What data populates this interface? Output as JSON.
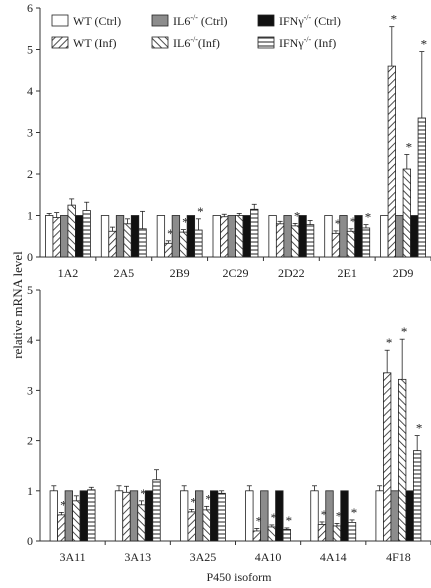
{
  "figure": {
    "ylabel": "relative mRNA level",
    "xlabel": "P450 isoform"
  },
  "legend": {
    "entries": [
      {
        "key": "wt_ctrl",
        "prefix": "WT",
        "sup": "",
        "suffix": " (Ctrl)",
        "fill": "white"
      },
      {
        "key": "il6_ctrl",
        "prefix": "IL6",
        "sup": "-/-",
        "suffix": " (Ctrl)",
        "fill": "gray"
      },
      {
        "key": "ifng_ctrl",
        "prefix": "IFNγ",
        "sup": "-/-",
        "suffix": " (Ctrl)",
        "fill": "black"
      },
      {
        "key": "wt_inf",
        "prefix": "WT",
        "sup": "",
        "suffix": " (Inf)",
        "fill": "hatch-fwd"
      },
      {
        "key": "il6_inf",
        "prefix": "IL6",
        "sup": "-/-",
        "suffix": "(Inf)",
        "fill": "hatch-back"
      },
      {
        "key": "ifng_inf",
        "prefix": "IFNγ",
        "sup": "-/-",
        "suffix": " (Inf)",
        "fill": "hatch-horiz"
      }
    ]
  },
  "colors": {
    "gray": "#8c8c8c",
    "black": "#111111",
    "axis": "#333333",
    "hatch": "#222222"
  },
  "chart_data": [
    {
      "type": "bar",
      "panel": "top",
      "ylim": [
        0,
        6
      ],
      "yticks": [
        "0",
        "1",
        "2",
        "3",
        "4",
        "5",
        "6"
      ],
      "categories": [
        "1A2",
        "2A5",
        "2B9",
        "2C29",
        "2D22",
        "2E1",
        "2D9"
      ],
      "series_order": [
        "WT (Ctrl)",
        "WT (Inf)",
        "IL6-/- (Ctrl)",
        "IL6-/- (Inf)",
        "IFNγ-/- (Ctrl)",
        "IFNγ-/- (Inf)"
      ],
      "series": [
        {
          "name": "WT (Ctrl)",
          "values": [
            1.0,
            1.0,
            1.0,
            1.0,
            1.0,
            1.0,
            1.0
          ],
          "err": [
            0.05,
            0.0,
            0.0,
            0.0,
            0.0,
            0.0,
            0.0
          ],
          "stars": [
            false,
            false,
            false,
            false,
            false,
            false,
            false
          ]
        },
        {
          "name": "WT (Inf)",
          "values": [
            0.95,
            0.62,
            0.33,
            0.97,
            0.8,
            0.57,
            4.6
          ],
          "err": [
            0.12,
            0.1,
            0.06,
            0.06,
            0.06,
            0.06,
            0.95
          ],
          "stars": [
            false,
            false,
            true,
            false,
            false,
            true,
            true
          ]
        },
        {
          "name": "IL6-/- (Ctrl)",
          "values": [
            1.0,
            1.0,
            1.0,
            1.0,
            1.0,
            1.0,
            1.0
          ],
          "err": [
            0.0,
            0.0,
            0.0,
            0.0,
            0.0,
            0.0,
            0.0
          ],
          "stars": [
            false,
            false,
            false,
            false,
            false,
            false,
            false
          ]
        },
        {
          "name": "IL6-/- (Inf)",
          "values": [
            1.25,
            0.8,
            0.6,
            1.0,
            0.75,
            0.62,
            2.12
          ],
          "err": [
            0.15,
            0.12,
            0.06,
            0.05,
            0.06,
            0.06,
            0.35
          ],
          "stars": [
            false,
            false,
            true,
            false,
            true,
            true,
            true
          ]
        },
        {
          "name": "IFNγ-/- (Ctrl)",
          "values": [
            1.0,
            1.0,
            1.0,
            1.0,
            1.0,
            1.0,
            1.0
          ],
          "err": [
            0.0,
            0.0,
            0.0,
            0.0,
            0.0,
            0.0,
            0.0
          ],
          "stars": [
            false,
            false,
            false,
            false,
            false,
            false,
            false
          ]
        },
        {
          "name": "IFNγ-/- (Inf)",
          "values": [
            1.12,
            0.68,
            0.65,
            1.15,
            0.78,
            0.7,
            3.35
          ],
          "err": [
            0.2,
            0.42,
            0.27,
            0.12,
            0.1,
            0.08,
            1.6
          ],
          "stars": [
            false,
            false,
            true,
            false,
            false,
            true,
            true
          ]
        }
      ]
    },
    {
      "type": "bar",
      "panel": "bottom",
      "ylim": [
        0,
        5
      ],
      "yticks": [
        "0",
        "1",
        "2",
        "3",
        "4",
        "5"
      ],
      "categories": [
        "3A11",
        "3A13",
        "3A25",
        "4A10",
        "4A14",
        "4F18"
      ],
      "series_order": [
        "WT (Ctrl)",
        "WT (Inf)",
        "IL6-/- (Ctrl)",
        "IL6-/- (Inf)",
        "IFNγ-/- (Ctrl)",
        "IFNγ-/- (Inf)"
      ],
      "series": [
        {
          "name": "WT (Ctrl)",
          "values": [
            1.0,
            1.0,
            1.0,
            1.0,
            1.0,
            1.0
          ],
          "err": [
            0.1,
            0.1,
            0.1,
            0.1,
            0.1,
            0.1
          ],
          "stars": [
            false,
            false,
            false,
            false,
            false,
            false
          ]
        },
        {
          "name": "WT (Inf)",
          "values": [
            0.52,
            0.97,
            0.58,
            0.2,
            0.33,
            3.35
          ],
          "err": [
            0.05,
            0.12,
            0.05,
            0.05,
            0.05,
            0.45
          ],
          "stars": [
            true,
            false,
            true,
            true,
            true,
            true
          ]
        },
        {
          "name": "IL6-/- (Ctrl)",
          "values": [
            1.0,
            1.0,
            1.0,
            1.0,
            1.0,
            1.0
          ],
          "err": [
            0.0,
            0.0,
            0.0,
            0.0,
            0.0,
            0.0
          ],
          "stars": [
            false,
            false,
            false,
            false,
            false,
            false
          ]
        },
        {
          "name": "IL6-/- (Inf)",
          "values": [
            0.8,
            0.72,
            0.62,
            0.28,
            0.3,
            3.22
          ],
          "err": [
            0.1,
            0.08,
            0.07,
            0.04,
            0.05,
            0.8
          ],
          "stars": [
            false,
            true,
            true,
            true,
            true,
            true
          ]
        },
        {
          "name": "IFNγ-/- (Ctrl)",
          "values": [
            1.0,
            1.0,
            1.0,
            1.0,
            1.0,
            1.0
          ],
          "err": [
            0.0,
            0.0,
            0.0,
            0.0,
            0.0,
            0.0
          ],
          "stars": [
            false,
            false,
            false,
            false,
            false,
            false
          ]
        },
        {
          "name": "IFNγ-/- (Inf)",
          "values": [
            1.02,
            1.22,
            0.95,
            0.23,
            0.37,
            1.8
          ],
          "err": [
            0.05,
            0.2,
            0.05,
            0.03,
            0.05,
            0.3
          ],
          "stars": [
            false,
            false,
            false,
            true,
            true,
            true
          ]
        }
      ]
    }
  ]
}
